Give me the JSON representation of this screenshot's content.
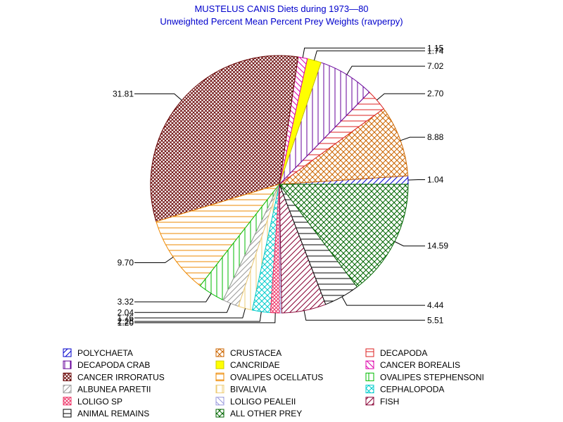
{
  "chart_data": {
    "type": "pie",
    "title": "MUSTELUS CANIS Diets during 1973—80",
    "subtitle": "Unweighted Percent Mean Percent Prey  Weights (ravperpy)",
    "slices": [
      {
        "name": "POLYCHAETA",
        "value": 1.04,
        "label": "1.04",
        "color": "#0000cc",
        "pattern": "fwd"
      },
      {
        "name": "CRUSTACEA",
        "value": 8.88,
        "label": "8.88",
        "color": "#cc6600",
        "pattern": "cross"
      },
      {
        "name": "DECAPODA",
        "value": 2.7,
        "label": "2.70",
        "color": "#dd2222",
        "pattern": "horiz"
      },
      {
        "name": "DECAPODA CRAB",
        "value": 7.02,
        "label": "7.02",
        "color": "#660099",
        "pattern": "vert"
      },
      {
        "name": "CANCRIDAE",
        "value": 1.74,
        "label": "1.74",
        "color": "#ffff00",
        "pattern": "solid"
      },
      {
        "name": "CANCER BOREALIS",
        "value": 1.15,
        "label": "1.15",
        "color": "#dd00aa",
        "pattern": "back"
      },
      {
        "name": "CANCER IRRORATUS",
        "value": 31.81,
        "label": "31.81",
        "color": "#660000",
        "pattern": "dense"
      },
      {
        "name": "OVALIPES OCELLATUS",
        "value": 9.7,
        "label": "9.70",
        "color": "#ee8800",
        "pattern": "horiz"
      },
      {
        "name": "OVALIPES STEPHENSONI",
        "value": 3.32,
        "label": "3.32",
        "color": "#00bb00",
        "pattern": "vert"
      },
      {
        "name": "ALBUNEA PARETII",
        "value": 2.04,
        "label": "2.04",
        "color": "#999999",
        "pattern": "fwd"
      },
      {
        "name": "BIVALVIA",
        "value": 1.76,
        "label": "1.76",
        "color": "#eecc77",
        "pattern": "vert"
      },
      {
        "name": "CEPHALOPODA",
        "value": 2.26,
        "label": "2.26",
        "color": "#00cccc",
        "pattern": "cross"
      },
      {
        "name": "LOLIGO SP",
        "value": 1.2,
        "label": "1.20",
        "color": "#ee3366",
        "pattern": "dense"
      },
      {
        "name": "LOLIGO PEALEII",
        "value": 0.2,
        "label": "",
        "color": "#9999dd",
        "pattern": "back"
      },
      {
        "name": "FISH",
        "value": 5.51,
        "label": "5.51",
        "color": "#880033",
        "pattern": "fwd"
      },
      {
        "name": "ANIMAL REMAINS",
        "value": 4.44,
        "label": "4.44",
        "color": "#000000",
        "pattern": "horiz"
      },
      {
        "name": "ALL OTHER PREY",
        "value": 14.59,
        "label": "14.59",
        "color": "#006600",
        "pattern": "cross"
      }
    ],
    "legend_position": "bottom"
  }
}
